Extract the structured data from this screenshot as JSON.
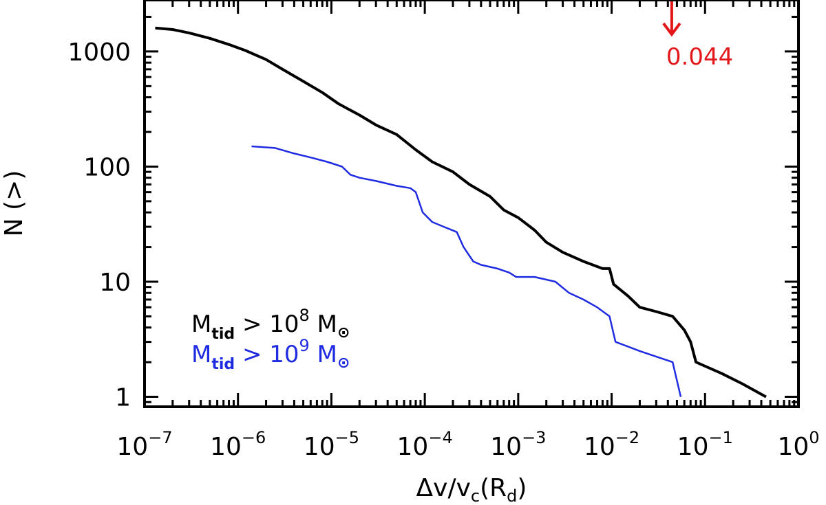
{
  "chart_data": {
    "type": "line",
    "title": "",
    "xlabel": {
      "delta": "Δv/v",
      "sub": "c",
      "open": "(R",
      "sub2": "d",
      "close": ")"
    },
    "ylabel": "N (>)",
    "x_scale": "log",
    "y_scale": "log",
    "xlim": [
      1e-07,
      1
    ],
    "ylim": [
      0.82,
      2800
    ],
    "x_ticks": [
      {
        "value": 1e-07,
        "base": "10",
        "exp": "−7"
      },
      {
        "value": 1e-06,
        "base": "10",
        "exp": "−6"
      },
      {
        "value": 1e-05,
        "base": "10",
        "exp": "−5"
      },
      {
        "value": 0.0001,
        "base": "10",
        "exp": "−4"
      },
      {
        "value": 0.001,
        "base": "10",
        "exp": "−3"
      },
      {
        "value": 0.01,
        "base": "10",
        "exp": "−2"
      },
      {
        "value": 0.1,
        "base": "10",
        "exp": "−1"
      },
      {
        "value": 1,
        "base": "10",
        "exp": "0"
      }
    ],
    "y_ticks": [
      {
        "value": 1,
        "label": "1"
      },
      {
        "value": 10,
        "label": "10"
      },
      {
        "value": 100,
        "label": "100"
      },
      {
        "value": 1000,
        "label": "1000"
      }
    ],
    "series": [
      {
        "name": "Mtid > 10^8 Msun",
        "legend": {
          "main": "M",
          "sub": "tid",
          "mid": " > 10",
          "sup": "8",
          "end": " M",
          "symbol": "⊙"
        },
        "color": "#000000",
        "x": [
          1.3e-07,
          2e-07,
          3e-07,
          5e-07,
          8e-07,
          1.2e-06,
          2e-06,
          3e-06,
          5e-06,
          8e-06,
          1.2e-05,
          2e-05,
          3e-05,
          5e-05,
          8e-05,
          0.00012,
          0.0002,
          0.0003,
          0.0005,
          0.0007,
          0.001,
          0.0015,
          0.002,
          0.003,
          0.005,
          0.008,
          0.0095,
          0.0105,
          0.015,
          0.02,
          0.03,
          0.045,
          0.06,
          0.07,
          0.08,
          0.15,
          0.25,
          0.45
        ],
        "y": [
          1600,
          1550,
          1450,
          1300,
          1150,
          1020,
          850,
          700,
          550,
          440,
          350,
          280,
          230,
          190,
          140,
          110,
          90,
          70,
          55,
          42,
          36,
          28,
          22,
          18,
          15,
          13,
          13,
          9.5,
          7.5,
          6,
          5.5,
          5,
          3.8,
          3,
          2,
          1.6,
          1.3,
          1
        ]
      },
      {
        "name": "Mtid > 10^9 Msun",
        "legend": {
          "main": "M",
          "sub": "tid",
          "mid": " > 10",
          "sup": "9",
          "end": " M",
          "symbol": "⊙"
        },
        "color": "#1f2be0",
        "x": [
          1.4e-06,
          2.5e-06,
          4e-06,
          6e-06,
          9e-06,
          1.3e-05,
          1.6e-05,
          2e-05,
          3e-05,
          5e-05,
          7e-05,
          8e-05,
          9.5e-05,
          0.00012,
          0.00016,
          0.00022,
          0.00026,
          0.00033,
          0.0004,
          0.0006,
          0.0008,
          0.00095,
          0.0015,
          0.0025,
          0.0035,
          0.005,
          0.007,
          0.0095,
          0.011,
          0.02,
          0.045,
          0.055
        ],
        "y": [
          150,
          145,
          130,
          120,
          110,
          100,
          85,
          80,
          75,
          68,
          65,
          60,
          40,
          33,
          30,
          27,
          20,
          15,
          14,
          13,
          12,
          11,
          11,
          10,
          8,
          7,
          6,
          5,
          3,
          2.5,
          2,
          1
        ]
      }
    ],
    "annotations": [
      {
        "text": "0.044",
        "x": 0.044,
        "color": "#e3161a",
        "marker": "down-arrow"
      }
    ]
  }
}
